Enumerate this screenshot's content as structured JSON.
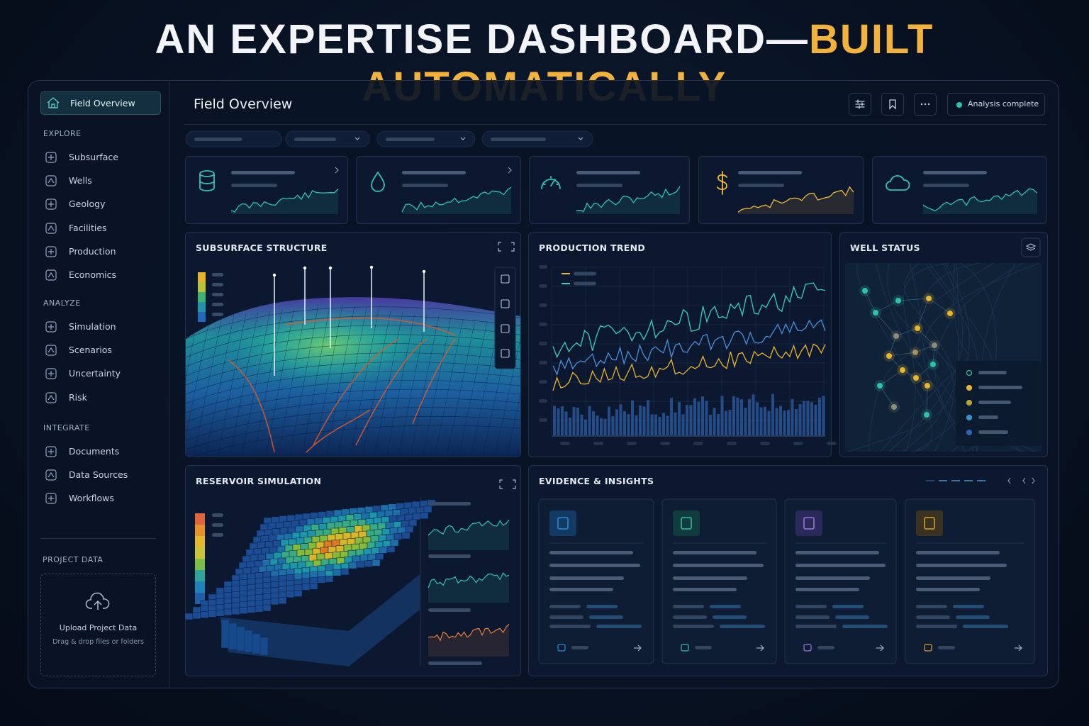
{
  "header": {
    "title_main": "AN EXPERTISE DASHBOARD—",
    "title_accent": "BUILT AUTOMATICALLY"
  },
  "sidebar": {
    "active": "Field Overview",
    "sections": [
      {
        "label": "EXPLORE",
        "items": [
          "Subsurface",
          "Wells",
          "Geology",
          "Facilities",
          "Production",
          "Economics"
        ]
      },
      {
        "label": "ANALYZE",
        "items": [
          "Simulation",
          "Scenarios",
          "Uncertainty",
          "Risk"
        ]
      },
      {
        "label": "INTEGRATE",
        "items": [
          "Documents",
          "Data Sources",
          "Workflows"
        ]
      }
    ],
    "project_data": {
      "label": "PROJECT DATA",
      "upload_title": "Upload Project Data",
      "upload_hint": "Drag & drop files or folders"
    }
  },
  "main": {
    "title": "Field Overview",
    "status": "Analysis complete",
    "panels": {
      "subsurface": "SUBSURFACE STRUCTURE",
      "production": "PRODUCTION TREND",
      "wells": "WELL STATUS",
      "reservoir": "RESERVOIR SIMULATION",
      "evidence": "EVIDENCE & INSIGHTS"
    }
  }
}
